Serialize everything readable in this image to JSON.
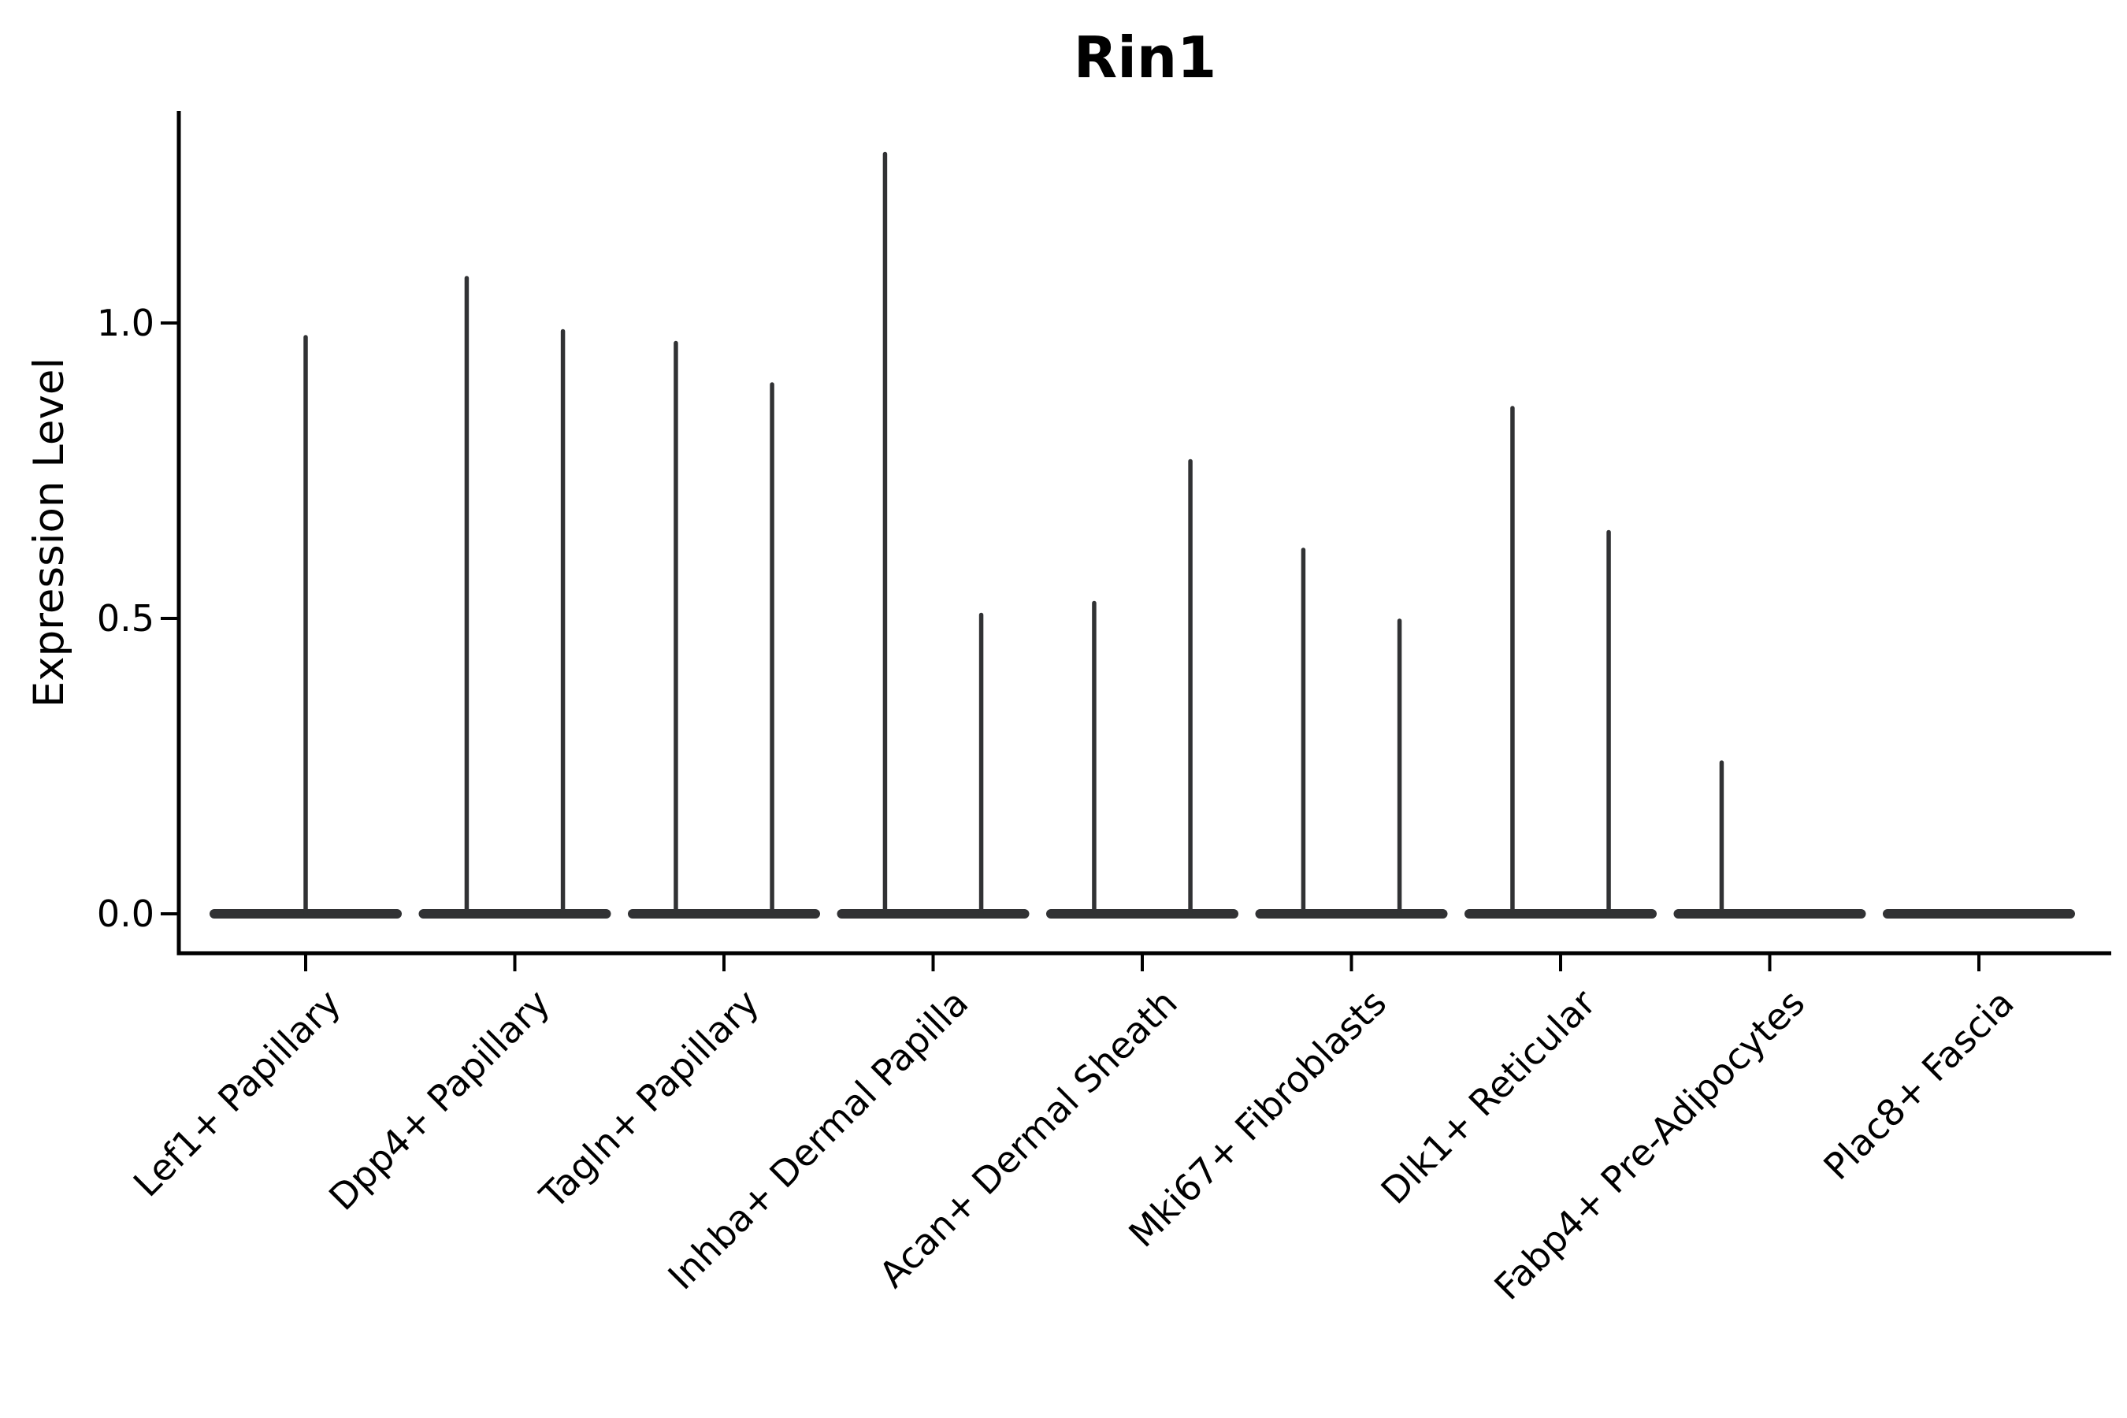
{
  "title": "Rin1",
  "chart_data": {
    "type": "violin",
    "title": "Rin1",
    "xlabel": "",
    "ylabel": "Expression Level",
    "ytick_labels": [
      "0.0",
      "0.5",
      "1.0"
    ],
    "ytick_values": [
      0.0,
      0.5,
      1.0
    ],
    "ylim": [
      -0.067,
      1.36
    ],
    "grid": false,
    "legend": "none",
    "violin_color": "#313234",
    "axis_color": "#000000",
    "note": "Each category shows a flat violin base at 0; thin spikes are sub-violin maxima (two dodged groups per category where present)",
    "categories": [
      {
        "label": "Lef1+ Papillary",
        "spikes": [
          {
            "dx": 0.0,
            "max": 0.98
          }
        ]
      },
      {
        "label": "Dpp4+ Papillary",
        "spikes": [
          {
            "dx": -0.23,
            "max": 1.08
          },
          {
            "dx": 0.23,
            "max": 0.99
          }
        ]
      },
      {
        "label": "Tagln+ Papillary",
        "spikes": [
          {
            "dx": -0.23,
            "max": 0.97
          },
          {
            "dx": 0.23,
            "max": 0.9
          }
        ]
      },
      {
        "label": "Inhba+ Dermal Papilla",
        "spikes": [
          {
            "dx": -0.23,
            "max": 1.29
          },
          {
            "dx": 0.23,
            "max": 0.51
          }
        ]
      },
      {
        "label": "Acan+ Dermal Sheath",
        "spikes": [
          {
            "dx": -0.23,
            "max": 0.53
          },
          {
            "dx": 0.23,
            "max": 0.77
          }
        ]
      },
      {
        "label": "Mki67+ Fibroblasts",
        "spikes": [
          {
            "dx": -0.23,
            "max": 0.62
          },
          {
            "dx": 0.23,
            "max": 0.5
          }
        ]
      },
      {
        "label": "Dlk1+ Reticular",
        "spikes": [
          {
            "dx": -0.23,
            "max": 0.86
          },
          {
            "dx": 0.23,
            "max": 0.65
          }
        ]
      },
      {
        "label": "Fabp4+ Pre-Adipocytes",
        "spikes": [
          {
            "dx": -0.23,
            "max": 0.26
          }
        ]
      },
      {
        "label": "Plac8+ Fascia",
        "spikes": []
      }
    ]
  }
}
